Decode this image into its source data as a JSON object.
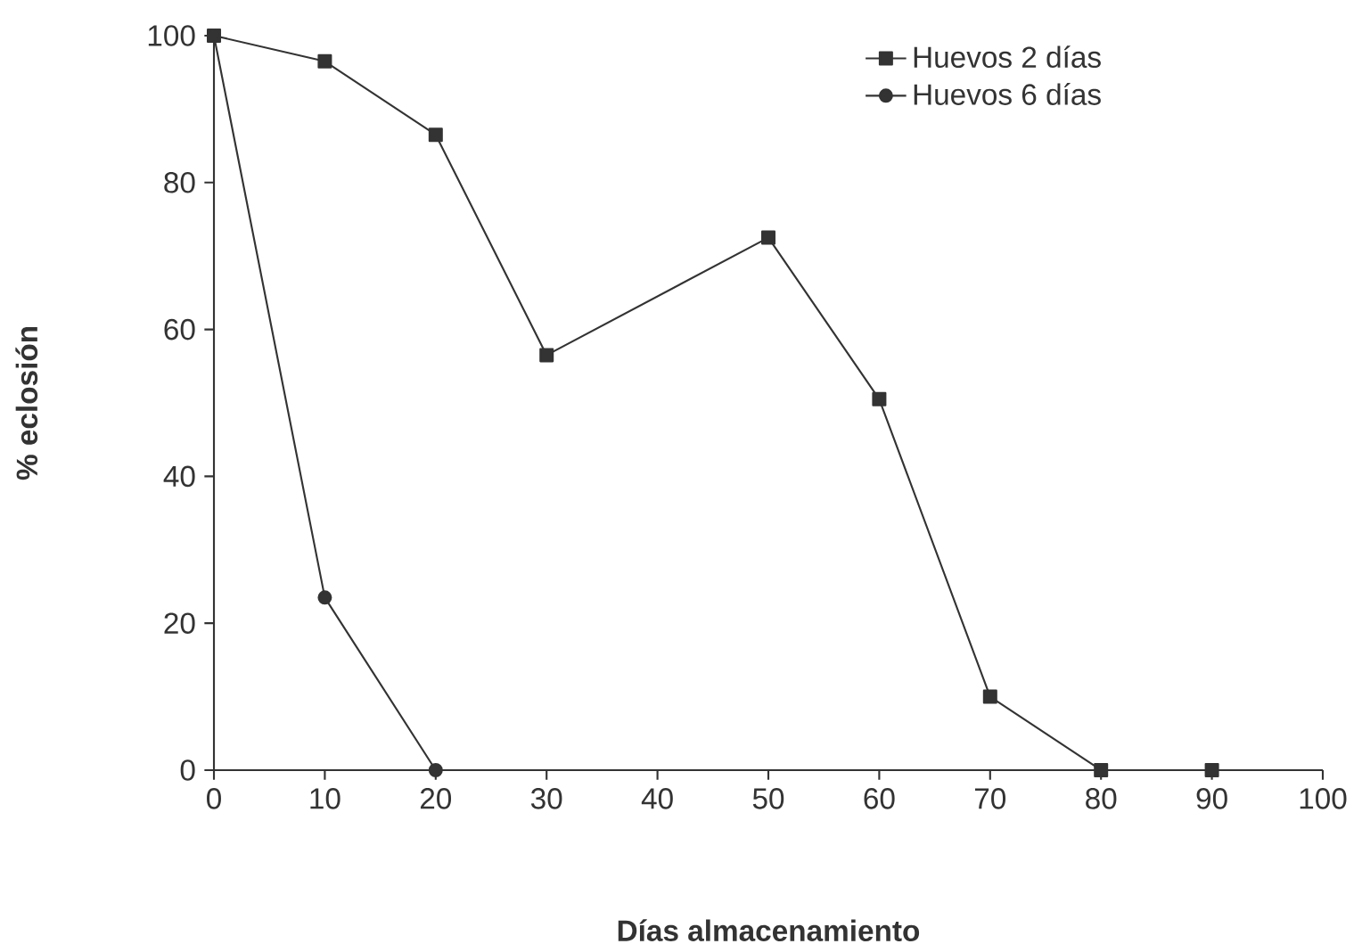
{
  "chart_data": {
    "type": "line",
    "xlabel": "Días almacenamiento",
    "ylabel": "% eclosión",
    "xlim": [
      0,
      100
    ],
    "ylim": [
      0,
      100
    ],
    "xticks": [
      0,
      10,
      20,
      30,
      40,
      50,
      60,
      70,
      80,
      90,
      100
    ],
    "yticks": [
      0,
      20,
      40,
      60,
      80,
      100
    ],
    "grid": false,
    "legend": "top right",
    "series": [
      {
        "name": "Huevos 2 días",
        "color": "#333333",
        "marker": "square",
        "x": [
          0,
          10,
          20,
          30,
          50,
          60,
          70,
          80,
          90
        ],
        "values": [
          100,
          96.5,
          86.5,
          56.5,
          72.5,
          50.5,
          10,
          0,
          0
        ]
      },
      {
        "name": "Huevos 6 días",
        "color": "#333333",
        "marker": "circle",
        "x": [
          0,
          10,
          20
        ],
        "values": [
          100,
          23.5,
          0
        ]
      }
    ]
  }
}
